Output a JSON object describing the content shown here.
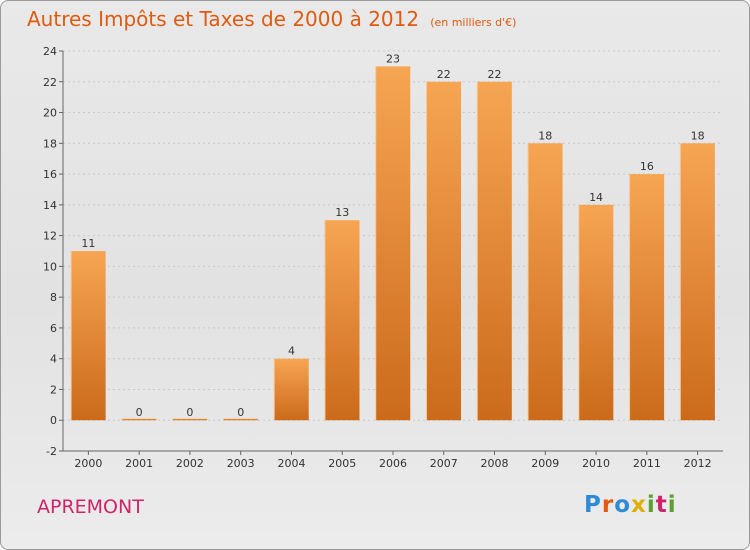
{
  "title": "Autres Impôts et Taxes de 2000 à 2012",
  "subtitle": "(en milliers d'€)",
  "commune": "APREMONT",
  "logo": {
    "letters": [
      "P",
      "r",
      "o",
      "x",
      "i",
      "t",
      "i"
    ],
    "colors": [
      "#2e8bd6",
      "#e05a10",
      "#2e8bd6",
      "#e0b000",
      "#5aa02c",
      "#d0246a",
      "#5aa02c"
    ]
  },
  "colors": {
    "bar_top": "#f6a553",
    "bar_bottom": "#cb6a1b",
    "title": "#e05a10",
    "commune": "#d0246a"
  },
  "chart_data": {
    "type": "bar",
    "title": "Autres Impôts et Taxes de 2000 à 2012",
    "subtitle": "(en milliers d'€)",
    "categories": [
      "2000",
      "2001",
      "2002",
      "2003",
      "2004",
      "2005",
      "2006",
      "2007",
      "2008",
      "2009",
      "2010",
      "2011",
      "2012"
    ],
    "values": [
      11,
      0,
      0,
      0,
      4,
      13,
      23,
      22,
      22,
      18,
      14,
      16,
      18
    ],
    "ylim": [
      -2,
      24
    ],
    "yticks": [
      -2,
      0,
      2,
      4,
      6,
      8,
      10,
      12,
      14,
      16,
      18,
      20,
      22,
      24
    ],
    "grid": true
  }
}
